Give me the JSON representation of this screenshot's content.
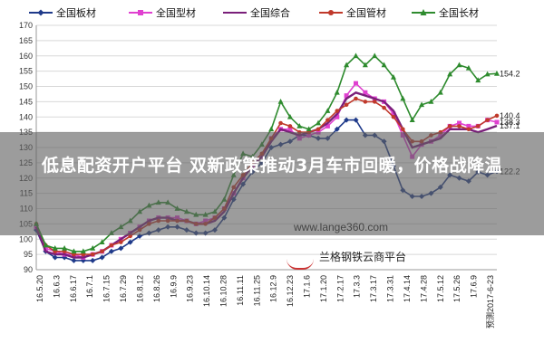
{
  "banner": {
    "title": "低息配资开户平台 双新政策推动3月车市回暖，价格战降温"
  },
  "watermark": {
    "url": "www.lange360.com",
    "name": "兰格钢铁云商平台"
  },
  "chart_data": {
    "type": "line",
    "ylim": [
      90,
      170
    ],
    "ytick_step": 5,
    "grid": "horizontal",
    "legend": "top",
    "x_tick_labels": [
      "16.5.20",
      "16.6.3",
      "16.6.17",
      "16.7.1",
      "16.7.15",
      "16.7.29",
      "16.8.12",
      "16.8.26",
      "16.9.9",
      "16.9.23",
      "16.10.14",
      "16.10.28",
      "16.11.11",
      "16.11.25",
      "16.12.9",
      "16.12.23",
      "17.1.6",
      "17.1.20",
      "17.2.17",
      "17.3.3",
      "17.3.17",
      "17.3.31",
      "17.4.14",
      "17.4.28",
      "17.5.12",
      "17.5.26",
      "17.6.9",
      "预测2017-6-23"
    ],
    "x_count": 50,
    "series": [
      {
        "name": "全国板材",
        "color": "#1f3a8a",
        "marker": "diamond",
        "values": [
          103,
          96,
          94,
          94,
          93,
          93,
          93,
          94,
          96,
          97,
          99,
          101,
          102,
          103,
          104,
          104,
          103,
          102,
          102,
          103,
          107,
          113,
          118,
          122,
          125,
          130,
          131,
          132,
          134,
          134,
          133,
          133,
          136,
          139,
          139,
          134,
          134,
          132,
          124,
          116,
          114,
          114,
          115,
          117,
          121,
          120,
          119,
          122,
          121,
          122.2
        ],
        "end_label": "122.2"
      },
      {
        "name": "全国型材",
        "color": "#e040d0",
        "marker": "square",
        "values": [
          104,
          97,
          96,
          95,
          95,
          94,
          95,
          96,
          98,
          100,
          102,
          104,
          106,
          107,
          107,
          107,
          106,
          105,
          106,
          107,
          110,
          115,
          120,
          124,
          127,
          133,
          136,
          136,
          133,
          134,
          135,
          137,
          140,
          147,
          151,
          148,
          146,
          145,
          141,
          134,
          127,
          131,
          132,
          134,
          137,
          138,
          137,
          137,
          139,
          138.3
        ],
        "end_label": "138.3"
      },
      {
        "name": "全国综合",
        "color": "#7a1f7a",
        "marker": "none",
        "values": [
          104,
          96,
          95,
          95,
          94,
          94,
          95,
          96,
          98,
          100,
          102,
          104,
          106,
          107,
          107,
          106,
          106,
          105,
          105,
          106,
          109,
          115,
          120,
          124,
          127,
          132,
          136,
          135,
          134,
          135,
          136,
          138,
          141,
          146,
          148,
          147,
          146,
          145,
          142,
          136,
          130,
          131,
          132,
          133,
          136,
          136,
          136,
          135,
          136,
          137.1
        ],
        "end_label": "137.1"
      },
      {
        "name": "全国管材",
        "color": "#c0392b",
        "marker": "circle",
        "values": [
          105,
          98,
          96,
          96,
          95,
          95,
          95,
          96,
          98,
          99,
          101,
          103,
          105,
          106,
          106,
          106,
          106,
          105,
          105,
          107,
          110,
          117,
          121,
          125,
          128,
          133,
          138,
          137,
          135,
          135,
          136,
          139,
          142,
          144,
          146,
          145,
          145,
          143,
          140,
          136,
          132,
          132,
          134,
          135,
          137,
          137,
          136,
          137,
          139,
          140.4
        ],
        "end_label": "140.4"
      },
      {
        "name": "全国长材",
        "color": "#2e8b2e",
        "marker": "triangle",
        "values": [
          105,
          98,
          97,
          97,
          96,
          96,
          97,
          99,
          102,
          104,
          106,
          109,
          111,
          112,
          112,
          110,
          109,
          108,
          108,
          109,
          113,
          121,
          128,
          127,
          131,
          136,
          145,
          140,
          137,
          136,
          138,
          142,
          148,
          157,
          160,
          157,
          160,
          157,
          153,
          146,
          139,
          144,
          145,
          148,
          154,
          157,
          156,
          152,
          154,
          154.2
        ],
        "end_label": "154.2"
      }
    ]
  }
}
